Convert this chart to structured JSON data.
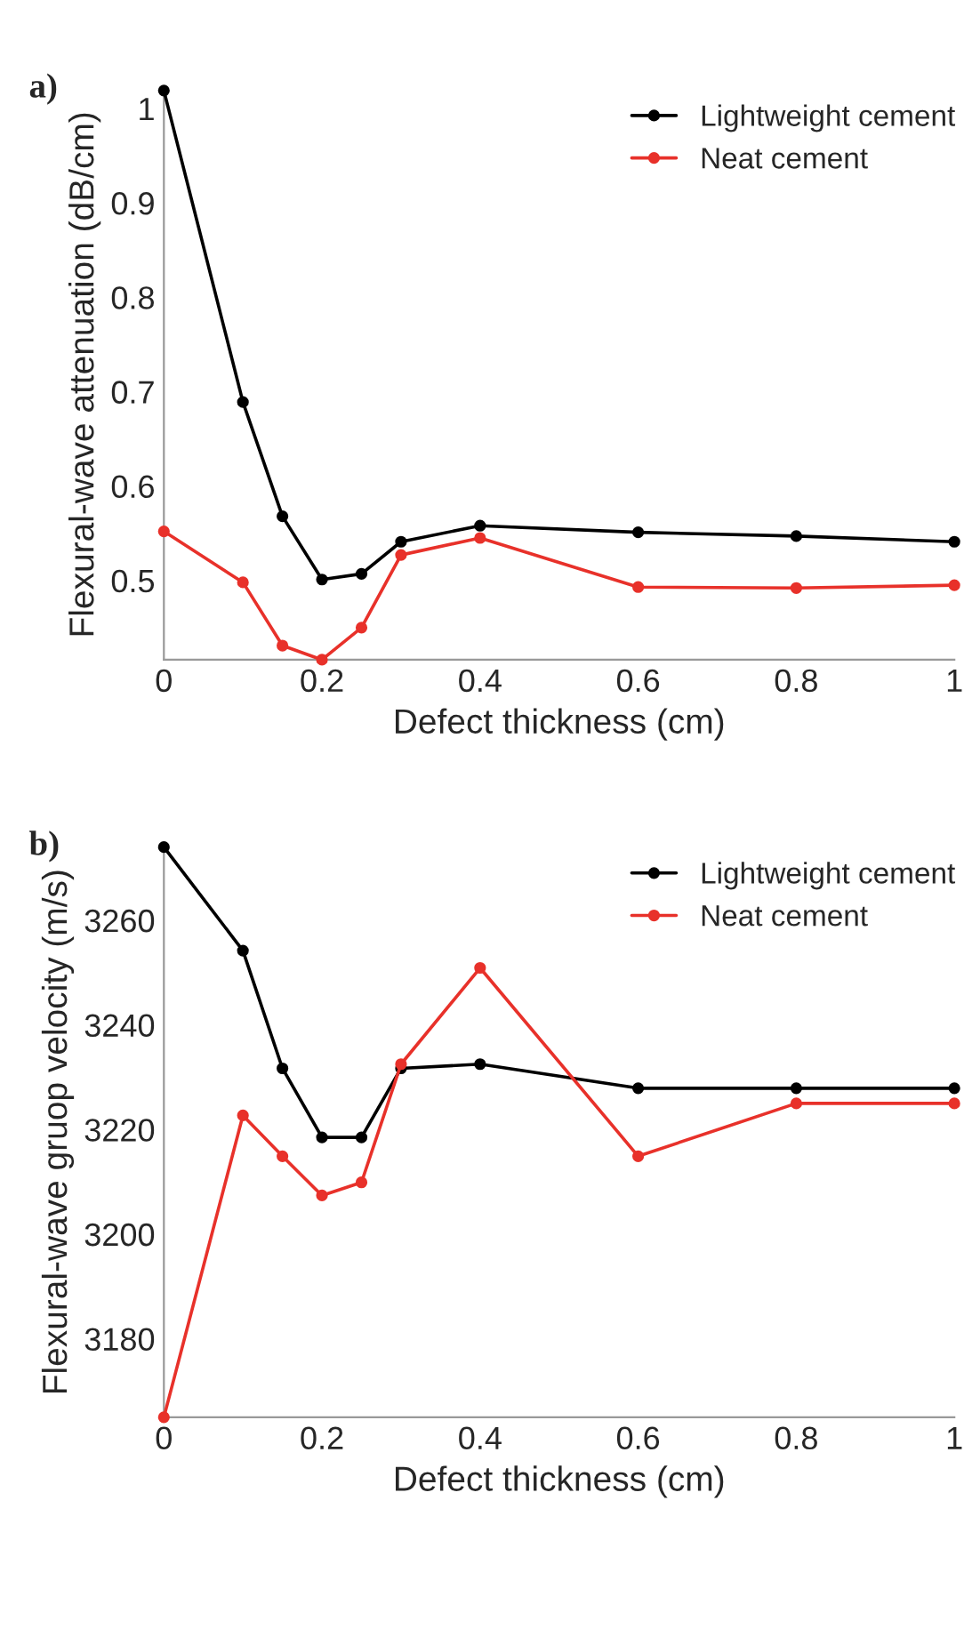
{
  "chart_data": [
    {
      "type": "line",
      "xlabel": "Defect thickness (cm)",
      "ylabel": "Flexural-wave attenuation (dB/cm)",
      "annotations": [
        "a)"
      ],
      "x": [
        0,
        0.1,
        0.15,
        0.2,
        0.25,
        0.3,
        0.4,
        0.6,
        0.8,
        1
      ],
      "series": [
        {
          "name": "Lightweight cement",
          "color": "#000000",
          "values": [
            1.019,
            0.689,
            0.568,
            0.501,
            0.507,
            0.541,
            0.558,
            0.551,
            0.547,
            0.541
          ]
        },
        {
          "name": "Neat cement",
          "color": "#e8312a",
          "values": [
            0.552,
            0.498,
            0.431,
            0.416,
            0.45,
            0.527,
            0.545,
            0.493,
            0.492,
            0.495
          ]
        }
      ],
      "xlim": [
        0,
        1
      ],
      "xticks": [
        0,
        0.2,
        0.4,
        0.6,
        0.8,
        1
      ],
      "ylim": [
        0.416,
        1.02
      ],
      "yticks": [
        0.5,
        0.6,
        0.7,
        0.8,
        0.9,
        {
          "value": 1.0,
          "label": "1"
        }
      ],
      "marker": "circle",
      "line_style": "solid",
      "legend": "top right",
      "grid": false
    },
    {
      "type": "line",
      "xlabel": "Defect thickness (cm)",
      "ylabel": "Flexural-wave gruop velocity (m/s)",
      "annotations": [
        "b)"
      ],
      "x": [
        0,
        0.1,
        0.15,
        0.2,
        0.25,
        0.3,
        0.4,
        0.6,
        0.8,
        1
      ],
      "series": [
        {
          "name": "Lightweight cement",
          "color": "#000000",
          "values": [
            3274,
            3254.2,
            3231.7,
            3218.5,
            3218.5,
            3231.7,
            3232.5,
            3227.9,
            3227.9,
            3227.9
          ]
        },
        {
          "name": "Neat cement",
          "color": "#e8312a",
          "values": [
            3165,
            3222.7,
            3214.9,
            3207.4,
            3209.9,
            3232.5,
            3250.9,
            3214.9,
            3225,
            3225
          ]
        }
      ],
      "xlim": [
        0,
        1
      ],
      "xticks": [
        0,
        0.2,
        0.4,
        0.6,
        0.8,
        1
      ],
      "ylim": [
        3165,
        3274
      ],
      "yticks": [
        3180,
        3200,
        3220,
        3240,
        3260
      ],
      "marker": "circle",
      "line_style": "solid",
      "legend": "top right",
      "grid": false
    }
  ]
}
